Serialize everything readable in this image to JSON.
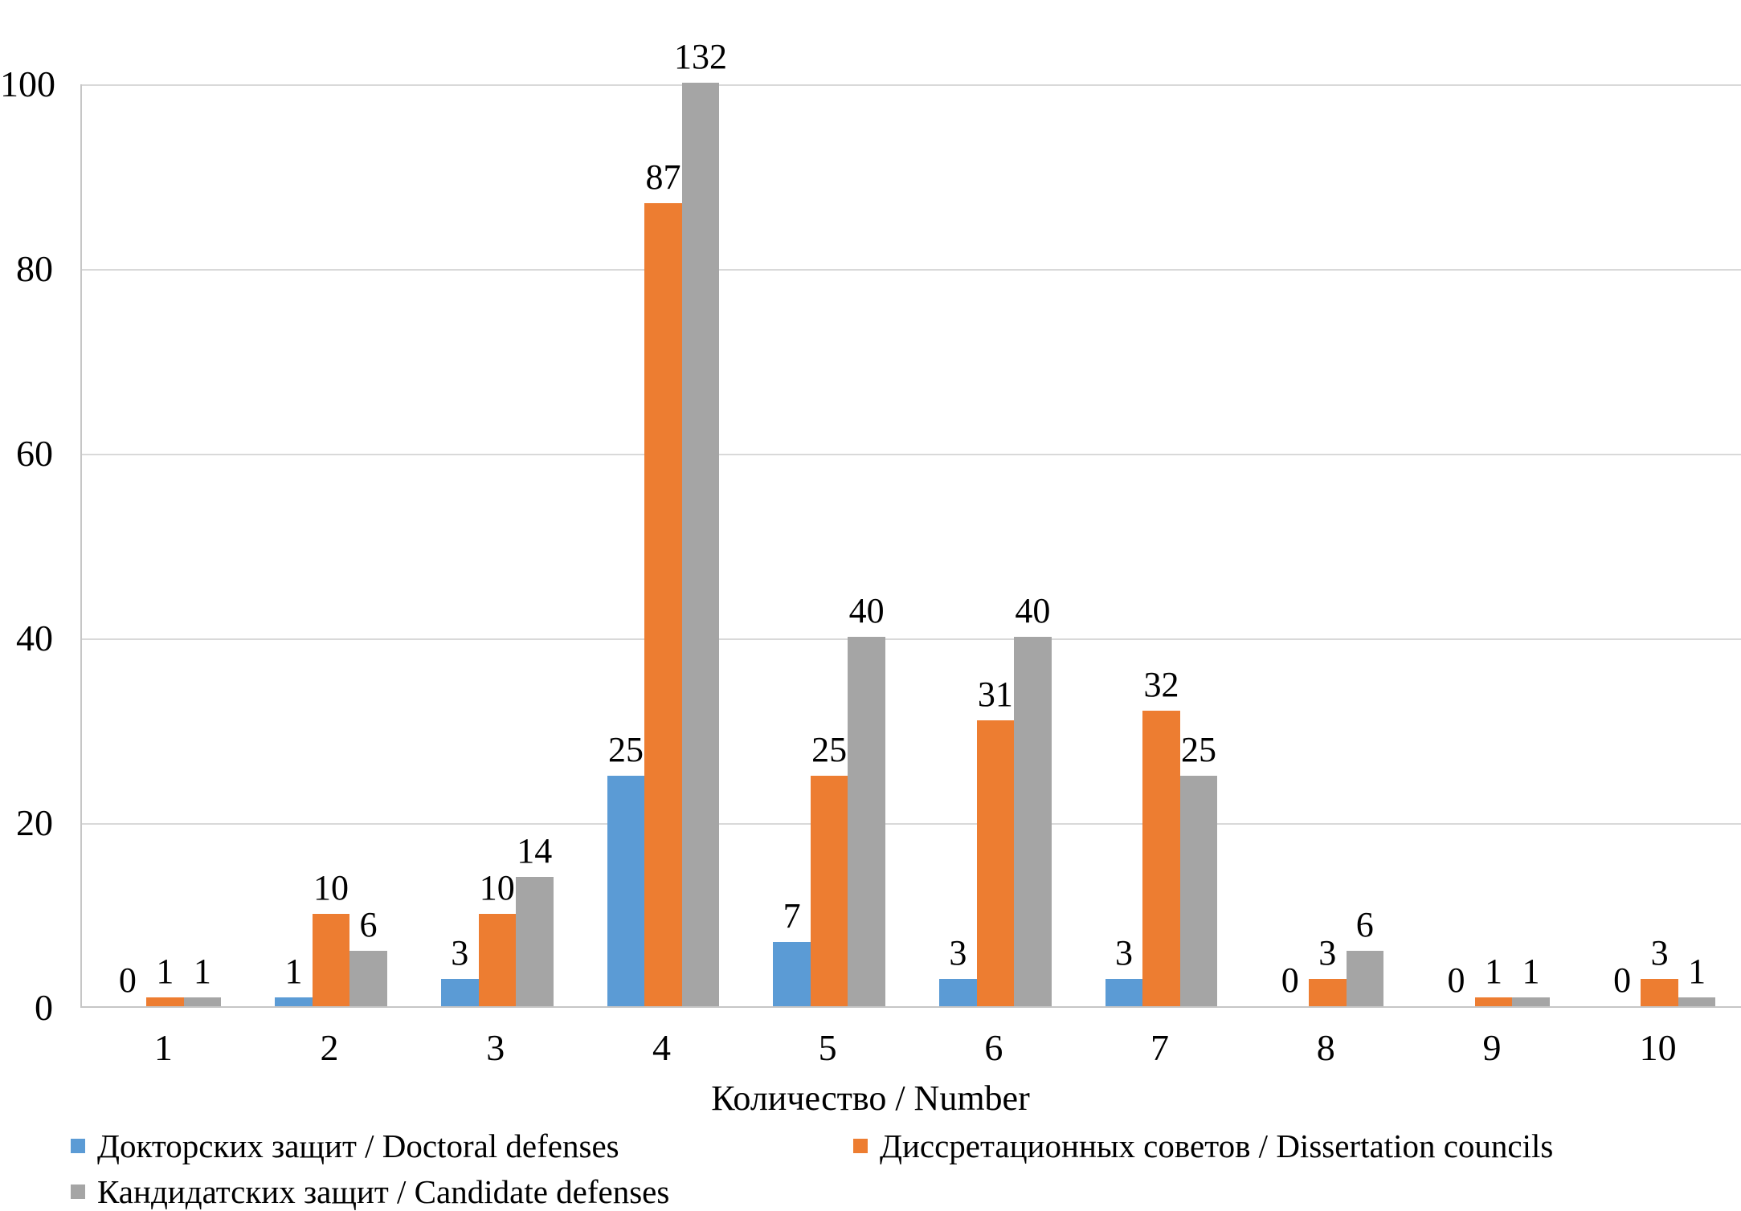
{
  "chart_data": {
    "type": "bar",
    "title": "",
    "categories": [
      "1",
      "2",
      "3",
      "4",
      "5",
      "6",
      "7",
      "8",
      "9",
      "10"
    ],
    "series": [
      {
        "name": "Докторских защит / Doctoral defenses",
        "color": "#5B9BD5",
        "values": [
          0,
          1,
          3,
          25,
          7,
          3,
          3,
          0,
          0,
          0
        ]
      },
      {
        "name": "Диссретационных советов / Dissertation councils",
        "color": "#ED7D31",
        "values": [
          1,
          10,
          10,
          87,
          25,
          31,
          32,
          3,
          1,
          3
        ]
      },
      {
        "name": "Кандидатских защит / Candidate defenses",
        "color": "#A5A5A5",
        "values": [
          1,
          6,
          14,
          132,
          40,
          40,
          25,
          6,
          1,
          1
        ]
      }
    ],
    "xlabel": "Количество / Number",
    "ylabel": "",
    "ylim": [
      0,
      100
    ],
    "yticks": [
      0,
      20,
      40,
      60,
      80,
      100
    ],
    "grid": true,
    "data_labels": true,
    "legend_position": "bottom",
    "note_clipped_bar": "gray bar of category 4 has value 132 but axis tops out at 100"
  }
}
